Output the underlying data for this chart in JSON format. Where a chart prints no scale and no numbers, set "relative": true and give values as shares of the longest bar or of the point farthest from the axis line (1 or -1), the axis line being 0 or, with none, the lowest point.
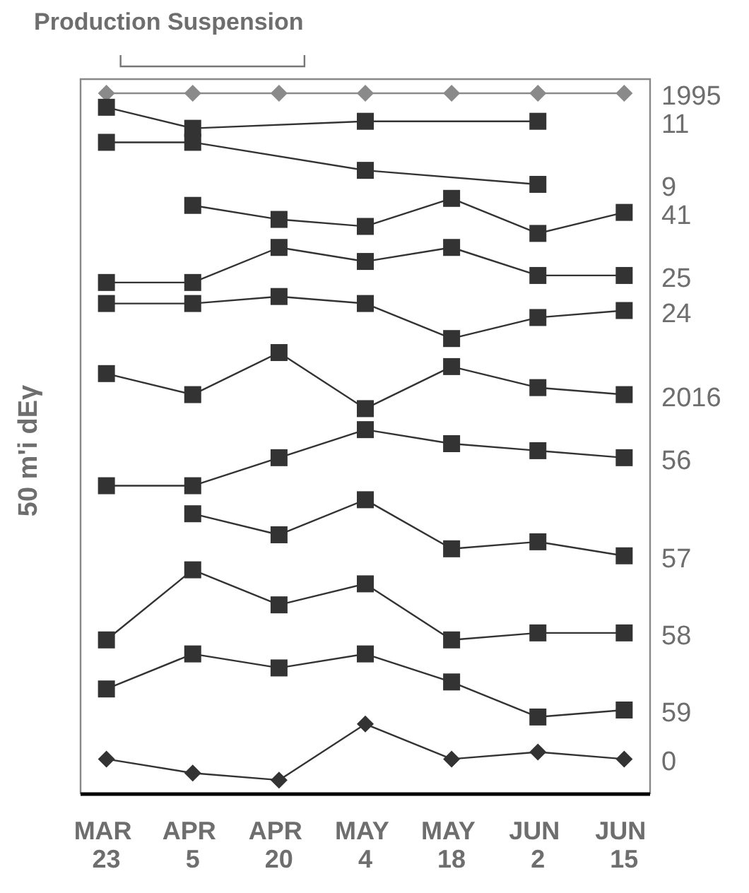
{
  "chart_data": {
    "type": "line",
    "relative": true,
    "ylabel": "50 m'i dEγ",
    "categories": [
      "MAR 23",
      "APR 5",
      "APR 20",
      "MAY 4",
      "MAY 18",
      "JUN 2",
      "JUN 15"
    ],
    "annotations": [
      "Production Suspension"
    ],
    "series": [
      {
        "name": "1995",
        "color": "#8a8a8a",
        "marker": "diamond",
        "values": [
          1,
          1,
          1,
          1,
          1,
          1,
          1
        ]
      },
      {
        "name": "11",
        "color": "#333333",
        "marker": "square",
        "values": [
          0.98,
          0.95,
          null,
          0.96,
          null,
          0.96,
          null
        ]
      },
      {
        "name": "9",
        "color": "#333333",
        "marker": "square",
        "values": [
          0.93,
          0.93,
          null,
          0.89,
          null,
          0.87,
          null
        ]
      },
      {
        "name": "41",
        "color": "#333333",
        "marker": "square",
        "values": [
          null,
          0.84,
          0.82,
          0.81,
          0.85,
          0.8,
          0.83
        ]
      },
      {
        "name": "25",
        "color": "#333333",
        "marker": "square",
        "values": [
          0.73,
          0.73,
          0.78,
          0.76,
          0.78,
          0.74,
          0.74
        ]
      },
      {
        "name": "24",
        "color": "#333333",
        "marker": "square",
        "values": [
          0.7,
          0.7,
          0.71,
          0.7,
          0.65,
          0.68,
          0.69
        ]
      },
      {
        "name": "2016",
        "color": "#333333",
        "marker": "square",
        "values": [
          0.6,
          0.57,
          0.63,
          0.55,
          0.61,
          0.58,
          0.57
        ]
      },
      {
        "name": "56",
        "color": "#333333",
        "marker": "square",
        "values": [
          0.44,
          0.44,
          0.48,
          0.52,
          0.5,
          0.49,
          0.48
        ]
      },
      {
        "name": "57",
        "color": "#333333",
        "marker": "square",
        "values": [
          null,
          0.4,
          0.37,
          0.42,
          0.35,
          0.36,
          0.34
        ]
      },
      {
        "name": "58",
        "color": "#333333",
        "marker": "square",
        "values": [
          0.22,
          0.32,
          0.27,
          0.3,
          0.22,
          0.23,
          0.23
        ]
      },
      {
        "name": "59",
        "color": "#333333",
        "marker": "square",
        "values": [
          0.15,
          0.2,
          0.18,
          0.2,
          0.16,
          0.11,
          0.12
        ]
      },
      {
        "name": "0",
        "color": "#333333",
        "marker": "diamond",
        "values": [
          0.05,
          0.03,
          0.02,
          0.1,
          0.05,
          0.06,
          0.05
        ]
      }
    ],
    "line_style": "solid"
  }
}
